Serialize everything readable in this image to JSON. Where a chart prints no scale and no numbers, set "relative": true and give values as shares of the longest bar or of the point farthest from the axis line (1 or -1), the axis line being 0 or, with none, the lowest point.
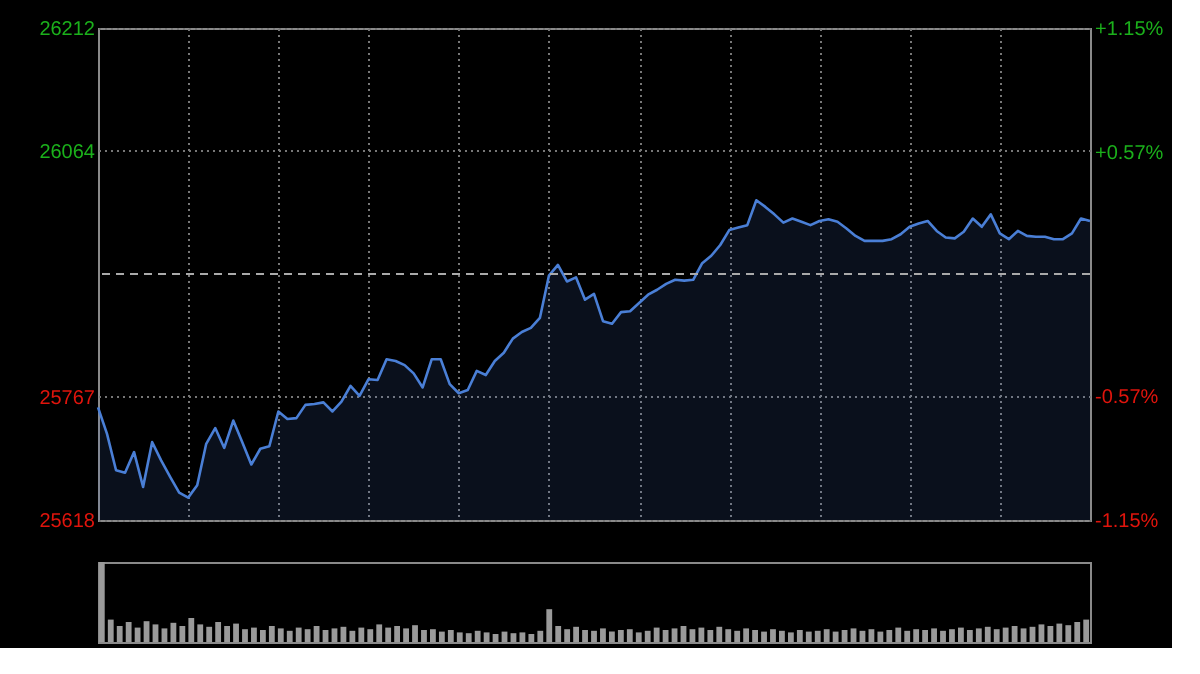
{
  "chart_data": [
    {
      "type": "area",
      "color": "#4a7fd6",
      "categories": [
        null,
        null,
        null,
        null,
        null,
        null,
        null,
        null,
        null,
        null,
        null,
        null,
        null,
        null,
        null,
        null,
        null,
        null,
        null,
        null,
        null,
        null,
        null,
        null,
        null,
        null,
        null,
        null,
        null,
        null,
        null,
        null,
        null,
        null,
        null,
        null,
        null,
        null,
        null,
        null,
        null,
        null,
        null,
        null,
        null,
        null,
        null,
        null,
        null,
        null,
        null,
        null,
        null,
        null,
        null,
        null,
        null,
        null,
        null,
        null,
        null,
        null,
        null,
        null,
        null,
        null,
        null,
        null,
        null,
        null,
        null,
        null,
        null,
        null,
        null,
        null,
        null,
        null,
        null,
        null,
        null,
        null,
        null,
        null,
        null,
        null,
        null,
        null,
        null,
        null,
        null,
        null,
        null,
        null,
        null,
        null,
        null,
        null,
        null,
        null,
        null,
        null,
        null,
        null,
        null,
        null,
        null,
        null,
        null,
        null,
        null
      ],
      "values": [
        25754,
        25722,
        25678,
        25675,
        25700,
        25658,
        25712,
        25690,
        25670,
        25651,
        25645,
        25660,
        25710,
        25729,
        25705,
        25738,
        25712,
        25685,
        25704,
        25707,
        25749,
        25740,
        25741,
        25757,
        25758,
        25760,
        25749,
        25761,
        25780,
        25768,
        25788,
        25787,
        25812,
        25810,
        25805,
        25795,
        25778,
        25812,
        25812,
        25782,
        25771,
        25775,
        25798,
        25793,
        25810,
        25820,
        25837,
        25845,
        25850,
        25862,
        25913,
        25926,
        25906,
        25911,
        25884,
        25891,
        25858,
        25855,
        25869,
        25870,
        25880,
        25890,
        25896,
        25903,
        25908,
        25907,
        25908,
        25928,
        25937,
        25950,
        25968,
        25971,
        25974,
        26004,
        25996,
        25987,
        25977,
        25982,
        25978,
        25974,
        25979,
        25981,
        25978,
        25970,
        25961,
        25955,
        25955,
        25955,
        25957,
        25963,
        25972,
        25976,
        25979,
        25967,
        25959,
        25958,
        25966,
        25982,
        25972,
        25987,
        25964,
        25957,
        25967,
        25961,
        25960,
        25960,
        25957,
        25957,
        25964,
        25982,
        25979
      ],
      "ylim": [
        25618,
        26212
      ],
      "yticks": [
        25618,
        25767,
        26064,
        26212
      ],
      "y2lim": [
        -1.15,
        1.15
      ],
      "y2ticks": [
        {
          "value": -1.15,
          "label": "-1.15%"
        },
        {
          "value": -0.57,
          "label": "-0.57%"
        },
        {
          "value": 0.57,
          "label": "+0.57%"
        },
        {
          "value": 1.15,
          "label": "+1.15%"
        }
      ],
      "ref_lines": [
        {
          "axis": "y2",
          "value": 0,
          "label": null,
          "line_style": "dashed",
          "color": "#aaaaaa"
        }
      ],
      "grid": true,
      "tick_labels": "y",
      "marker": "none"
    },
    {
      "type": "bar",
      "relative": true,
      "color": "#9a9a9a",
      "tick_labels": false,
      "categories": [
        null,
        null,
        null,
        null,
        null,
        null,
        null,
        null,
        null,
        null,
        null,
        null,
        null,
        null,
        null,
        null,
        null,
        null,
        null,
        null,
        null,
        null,
        null,
        null,
        null,
        null,
        null,
        null,
        null,
        null,
        null,
        null,
        null,
        null,
        null,
        null,
        null,
        null,
        null,
        null,
        null,
        null,
        null,
        null,
        null,
        null,
        null,
        null,
        null,
        null,
        null,
        null,
        null,
        null,
        null,
        null,
        null,
        null,
        null,
        null,
        null,
        null,
        null,
        null,
        null,
        null,
        null,
        null,
        null,
        null,
        null,
        null,
        null,
        null,
        null,
        null,
        null,
        null,
        null,
        null,
        null,
        null,
        null,
        null,
        null,
        null,
        null,
        null,
        null,
        null,
        null,
        null,
        null,
        null,
        null,
        null,
        null,
        null,
        null,
        null,
        null,
        null,
        null,
        null,
        null,
        null,
        null,
        null,
        null,
        null,
        null
      ],
      "values": [
        1.0,
        0.28,
        0.2,
        0.25,
        0.18,
        0.26,
        0.22,
        0.17,
        0.24,
        0.2,
        0.3,
        0.22,
        0.19,
        0.25,
        0.2,
        0.23,
        0.16,
        0.18,
        0.15,
        0.2,
        0.17,
        0.14,
        0.18,
        0.16,
        0.2,
        0.15,
        0.17,
        0.19,
        0.14,
        0.18,
        0.16,
        0.22,
        0.18,
        0.2,
        0.17,
        0.21,
        0.15,
        0.16,
        0.13,
        0.15,
        0.12,
        0.11,
        0.14,
        0.12,
        0.1,
        0.13,
        0.11,
        0.12,
        0.1,
        0.14,
        0.41,
        0.2,
        0.16,
        0.19,
        0.15,
        0.14,
        0.17,
        0.13,
        0.15,
        0.16,
        0.12,
        0.14,
        0.18,
        0.15,
        0.17,
        0.2,
        0.16,
        0.18,
        0.15,
        0.19,
        0.16,
        0.14,
        0.17,
        0.15,
        0.13,
        0.16,
        0.14,
        0.12,
        0.15,
        0.13,
        0.14,
        0.16,
        0.13,
        0.15,
        0.17,
        0.14,
        0.16,
        0.13,
        0.15,
        0.18,
        0.14,
        0.16,
        0.15,
        0.17,
        0.14,
        0.16,
        0.18,
        0.15,
        0.17,
        0.19,
        0.16,
        0.18,
        0.2,
        0.17,
        0.19,
        0.22,
        0.2,
        0.23,
        0.21,
        0.25,
        0.28
      ]
    }
  ]
}
